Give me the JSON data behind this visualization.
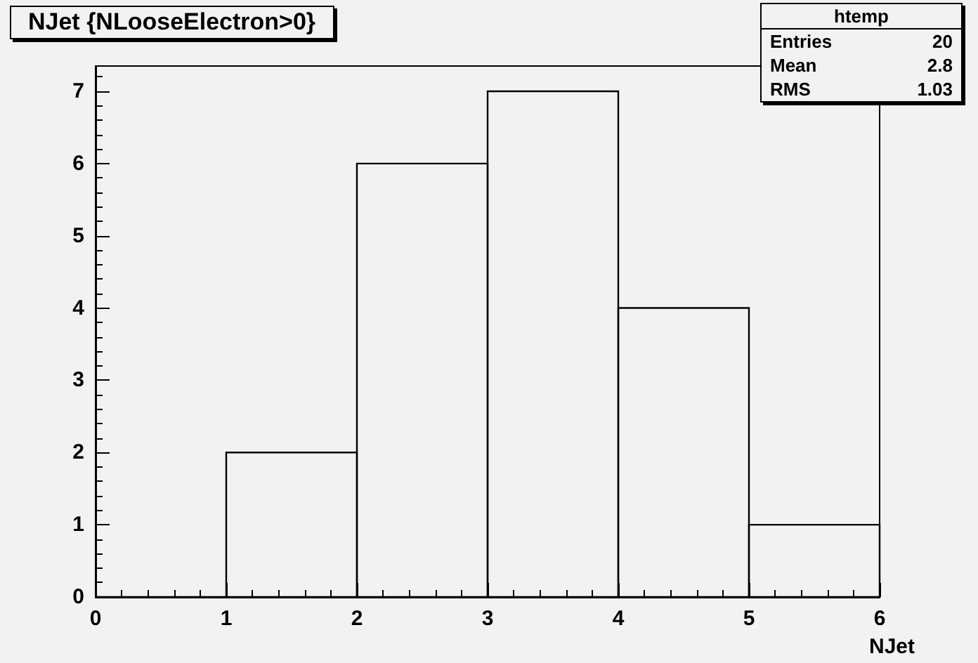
{
  "chart_data": {
    "type": "histogram",
    "title": "NJet {NLooseElectron>0}",
    "xlabel": "NJet",
    "bins": [
      0,
      1,
      2,
      3,
      4,
      5,
      6
    ],
    "values": [
      0,
      2,
      6,
      7,
      4,
      1
    ],
    "color": "#000000",
    "xlim": [
      0,
      6
    ],
    "xticks": [
      0,
      1,
      2,
      3,
      4,
      5,
      6
    ],
    "ylim": [
      0,
      7.35
    ],
    "yticks": [
      0,
      1,
      2,
      3,
      4,
      5,
      6,
      7
    ],
    "grid": false,
    "annotations": [
      "htemp",
      "Entries",
      "20",
      "Mean",
      "2.8",
      "RMS",
      "1.03"
    ]
  }
}
